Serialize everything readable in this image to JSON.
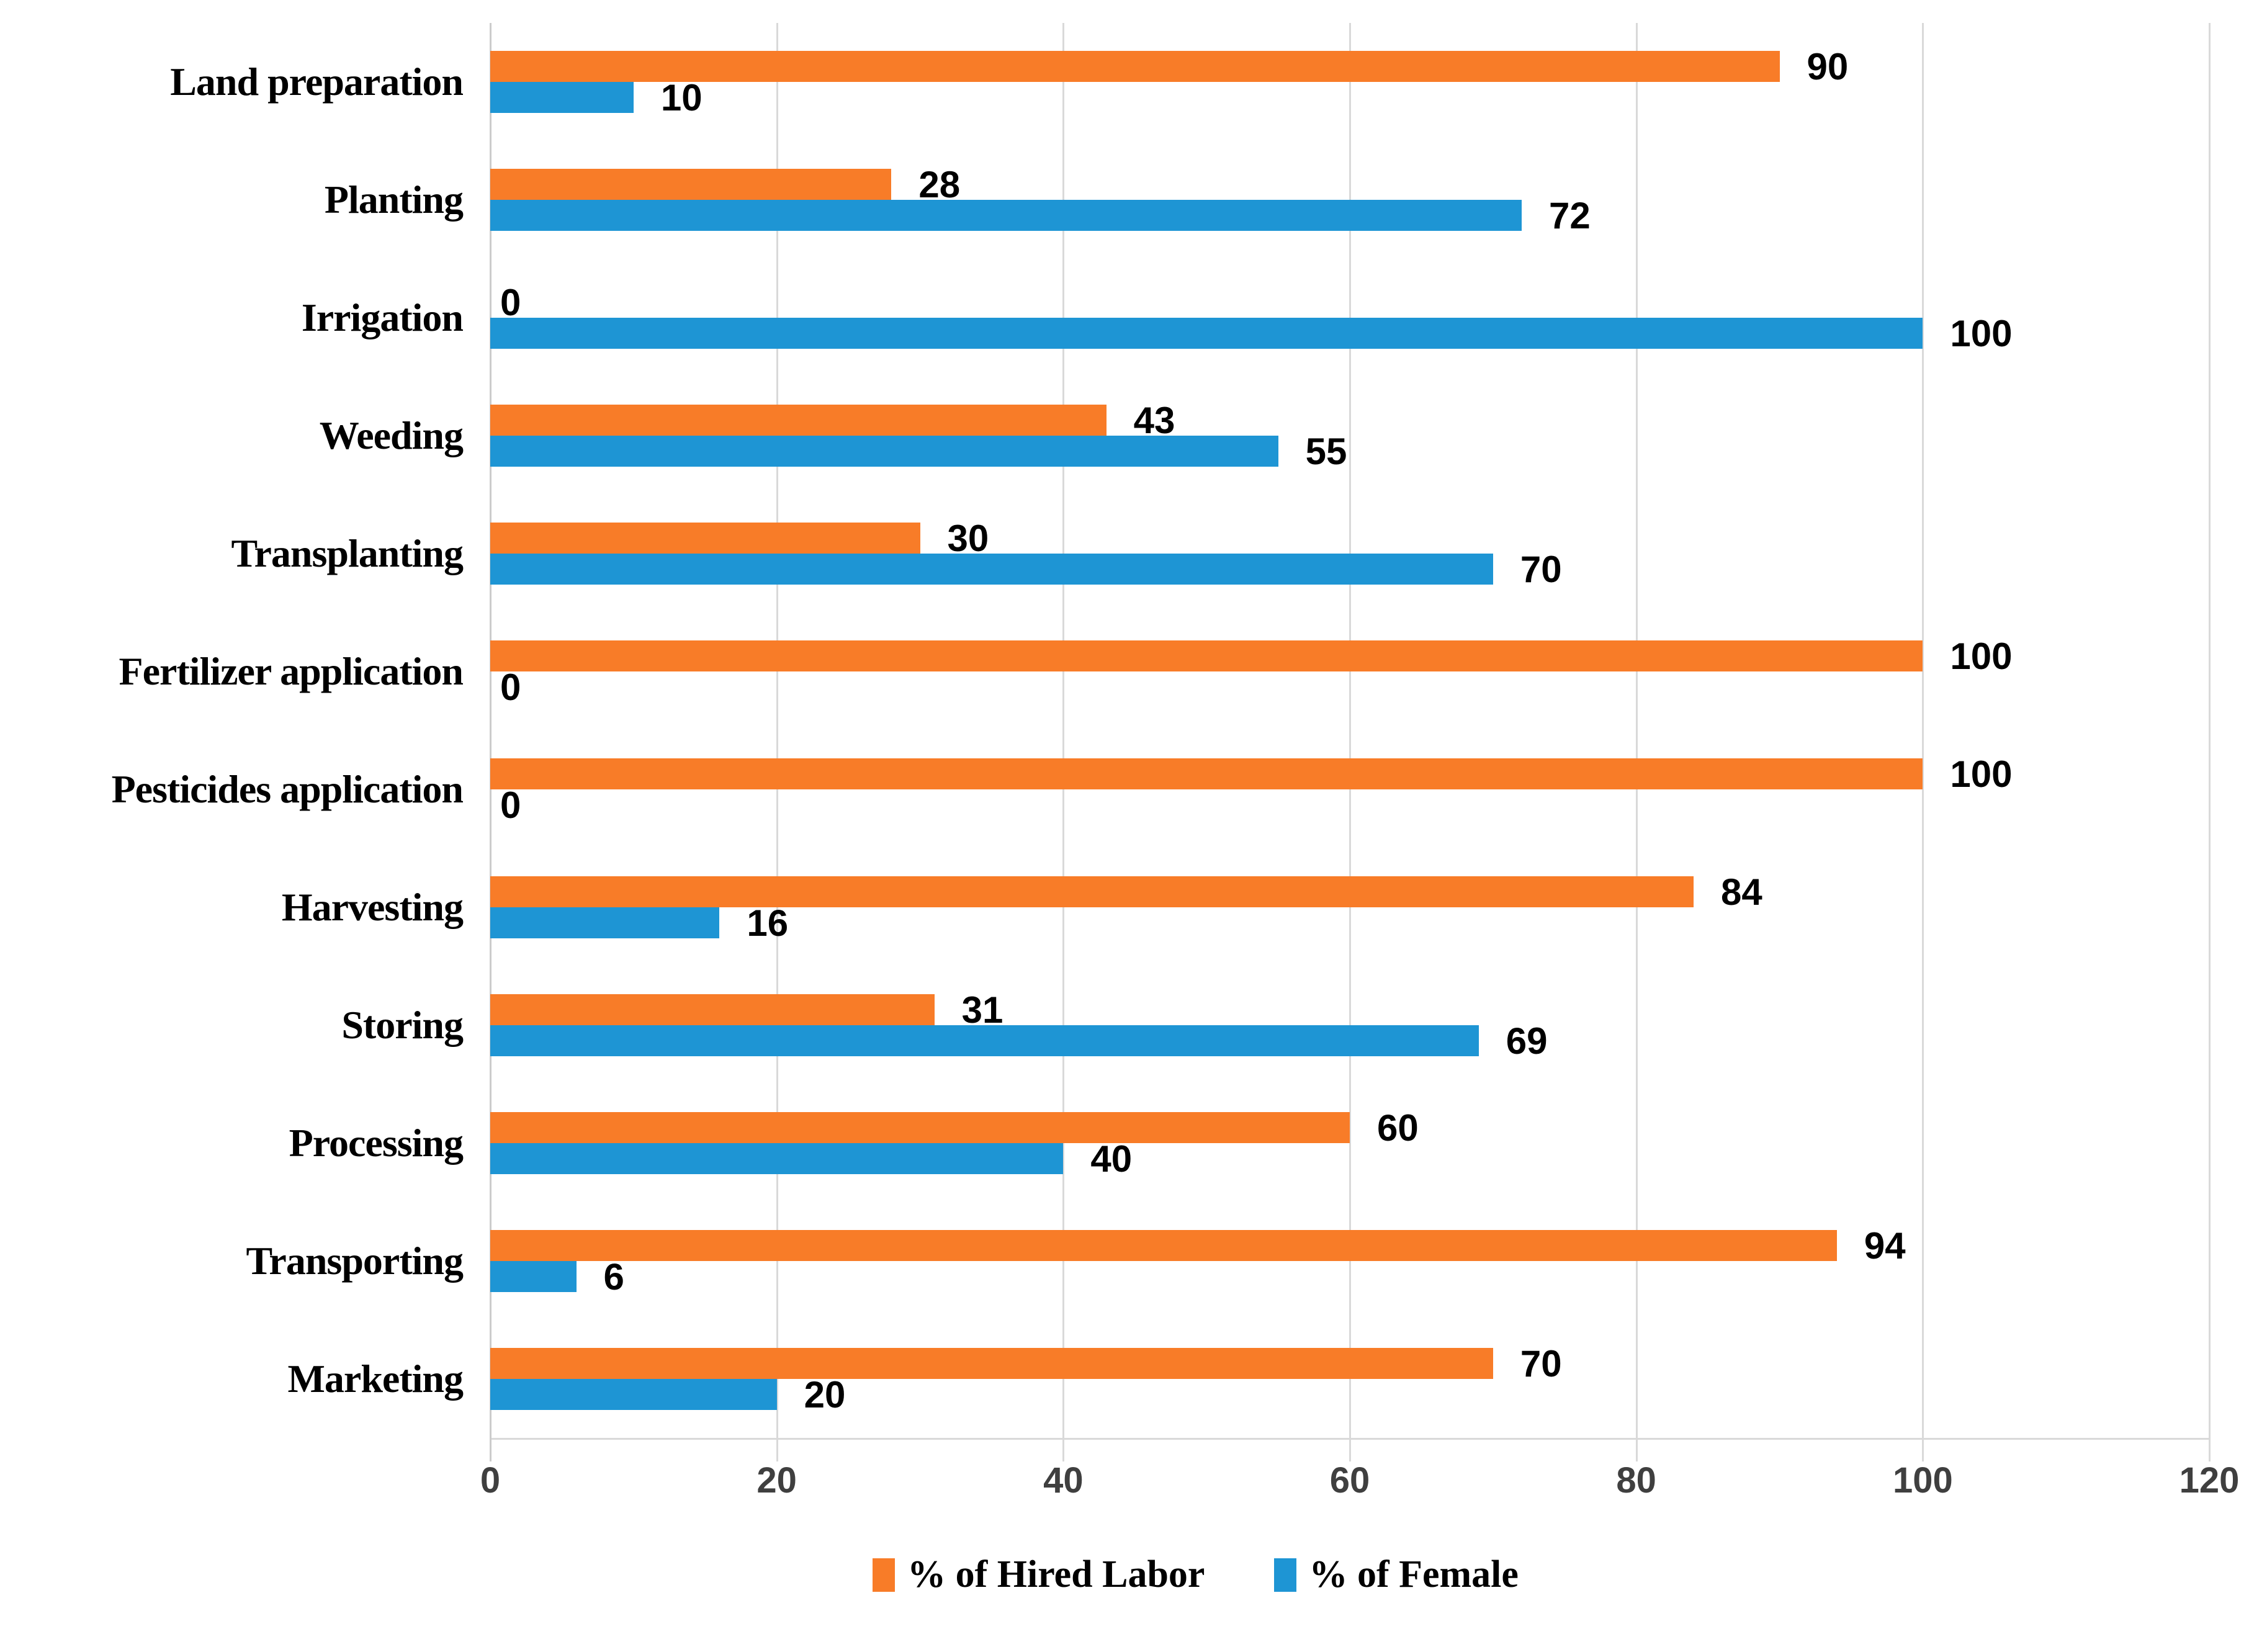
{
  "chart_data": {
    "type": "bar",
    "orientation": "horizontal",
    "title": "",
    "xlabel": "",
    "ylabel": "",
    "categories": [
      "Land preparation",
      "Planting",
      "Irrigation",
      "Weeding",
      "Transplanting",
      "Fertilizer application",
      "Pesticides application",
      "Harvesting",
      "Storing",
      "Processing",
      "Transporting",
      "Marketing"
    ],
    "series": [
      {
        "name": "% of Hired Labor",
        "color": "#f87c28",
        "values": [
          90,
          28,
          0,
          43,
          30,
          100,
          100,
          84,
          31,
          60,
          94,
          70
        ]
      },
      {
        "name": "% of Female",
        "color": "#1e95d4",
        "values": [
          10,
          72,
          100,
          55,
          70,
          0,
          0,
          16,
          69,
          40,
          6,
          20
        ]
      }
    ],
    "xlim": [
      0,
      120
    ],
    "x_ticks": [
      0,
      20,
      40,
      60,
      80,
      100,
      120
    ],
    "grid": "vertical gridlines every 20 units",
    "gridline_color": "#d9d9d9",
    "tick_label_color": "#3f3f3f",
    "data_label_color": "#000000",
    "legend_position": "bottom-center",
    "data_labels": "shown at end of each bar"
  }
}
